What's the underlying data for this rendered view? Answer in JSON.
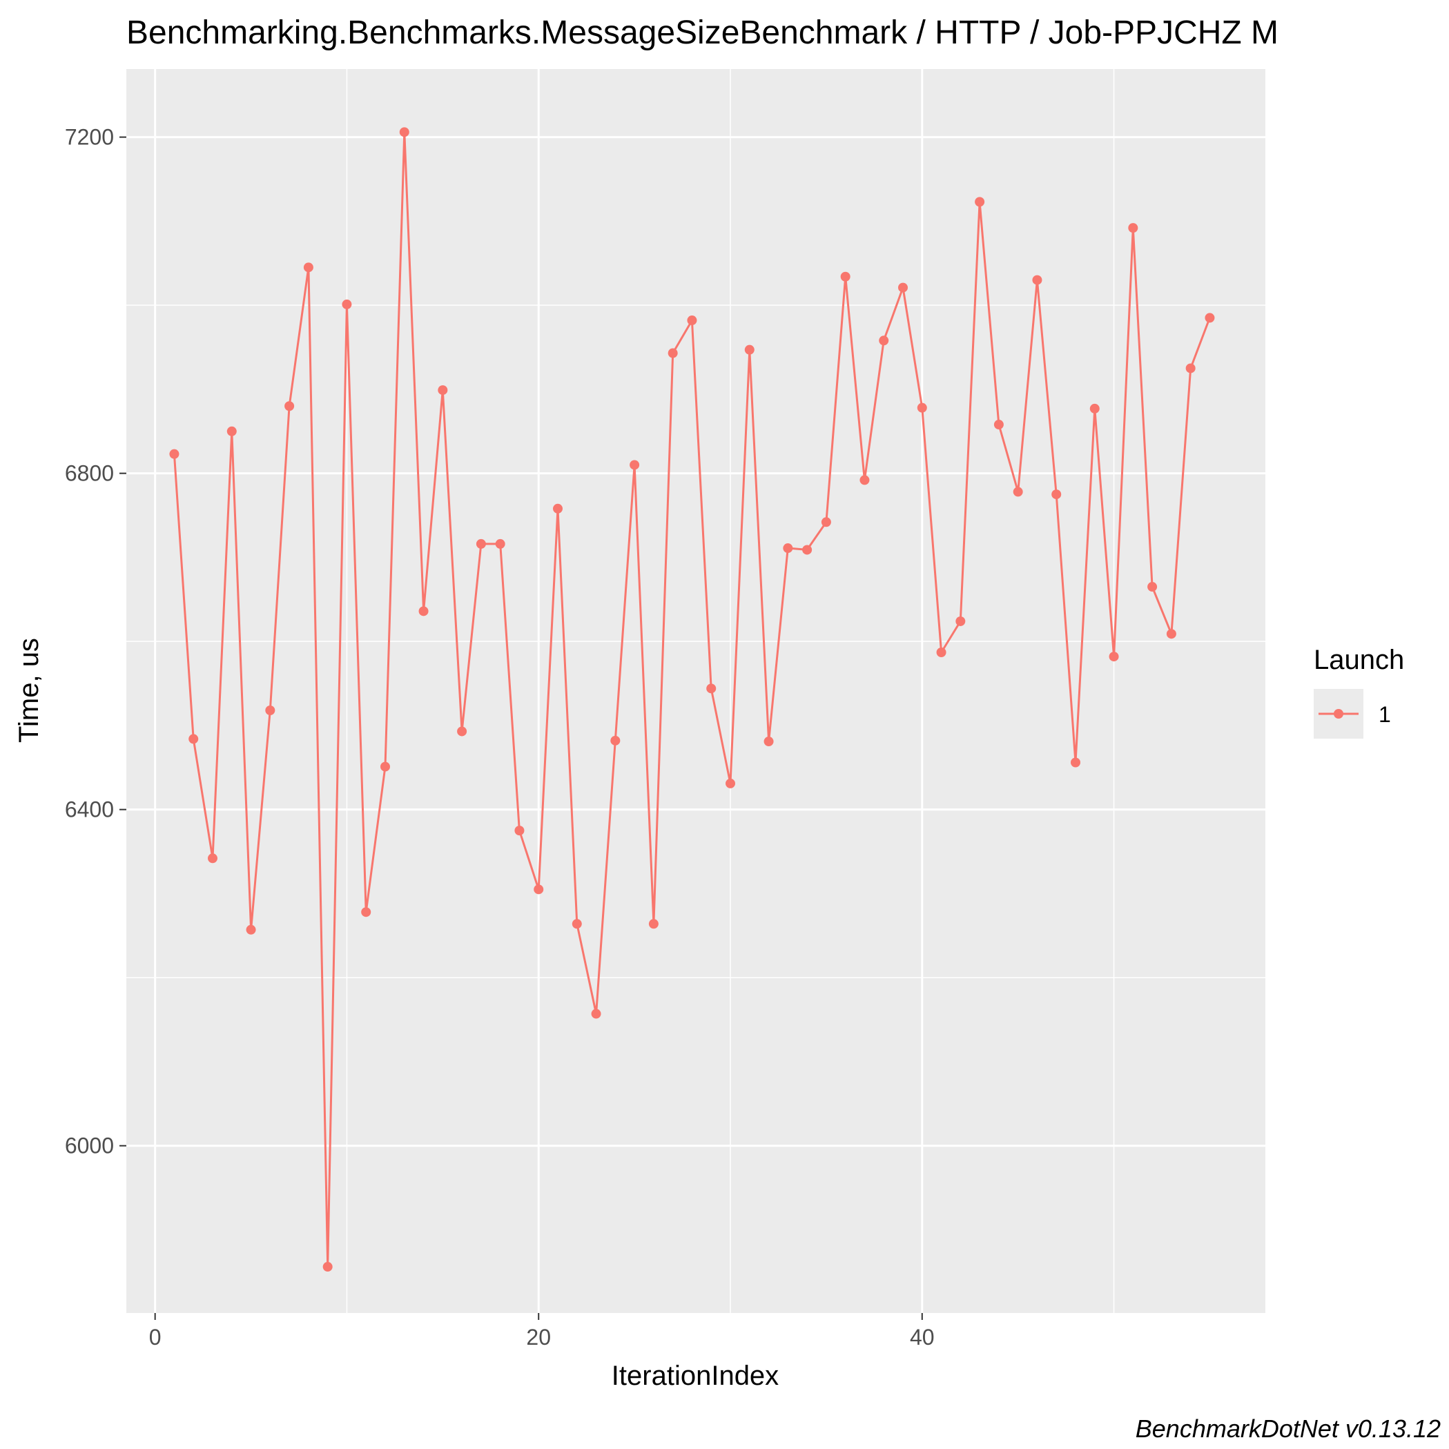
{
  "chart_data": {
    "type": "line",
    "title": "Benchmarking.Benchmarks.MessageSizeBenchmark / HTTP / Job-PPJCHZ M",
    "xlabel": "IterationIndex",
    "ylabel": "Time, us",
    "caption": "BenchmarkDotNet v0.13.12",
    "xlim": [
      -1.5,
      57.9
    ],
    "ylim": [
      5801,
      7281
    ],
    "x_ticks": [
      0,
      20,
      40
    ],
    "x_tick_labels": [
      "0",
      "20",
      "40"
    ],
    "y_ticks": [
      6000,
      6400,
      6800,
      7200
    ],
    "y_tick_labels": [
      "6000",
      "6400",
      "6800",
      "7200"
    ],
    "grid": true,
    "legend": {
      "title": "Launch",
      "placement": "right",
      "entries": [
        "1"
      ]
    },
    "colors": {
      "series": "#F8766D",
      "panel": "#EBEBEB",
      "grid": "#FFFFFF",
      "tick": "#333333"
    },
    "series": [
      {
        "name": "1",
        "x": [
          1,
          2,
          3,
          4,
          5,
          6,
          7,
          8,
          9,
          10,
          11,
          12,
          13,
          14,
          15,
          16,
          17,
          18,
          19,
          20,
          21,
          22,
          23,
          24,
          25,
          26,
          27,
          28,
          29,
          30,
          31,
          32,
          33,
          34,
          35,
          36,
          37,
          38,
          39,
          40,
          41,
          42,
          43,
          44,
          45,
          46,
          47,
          48,
          49,
          50,
          51,
          52,
          53,
          54,
          55
        ],
        "values": [
          6823,
          6484,
          6342,
          6850,
          6257,
          6518,
          6880,
          7045,
          5856,
          7001,
          6278,
          6451,
          7206,
          6636,
          6899,
          6493,
          6716,
          6716,
          6375,
          6305,
          6758,
          6264,
          6157,
          6482,
          6810,
          6264,
          6943,
          6982,
          6544,
          6431,
          6947,
          6481,
          6711,
          6709,
          6742,
          7034,
          6792,
          6958,
          7021,
          6878,
          6587,
          6624,
          7123,
          6858,
          6778,
          7030,
          6775,
          6456,
          6877,
          6582,
          7092,
          6665,
          6609,
          6925,
          6985
        ]
      }
    ]
  }
}
